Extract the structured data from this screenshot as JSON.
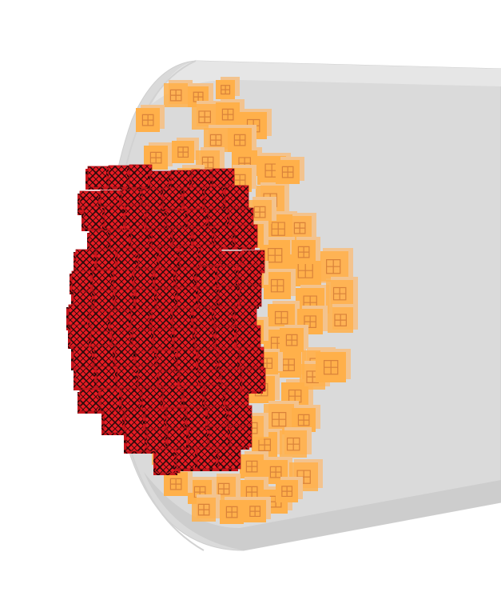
{
  "scene": {
    "background_color": "#ffffff",
    "cylinder": {
      "fill": "#d9d9d9",
      "cap_fill": "#e4e4e4",
      "edge": "#cfcfcf"
    },
    "outer_blocks": {
      "fill": "#ffb04a",
      "side_fill": "#f3c38e",
      "grid_line": "#d9823a",
      "count": 62
    },
    "inner_blocks": {
      "fill": "#e81c24",
      "dark_fill": "#b3141a",
      "pattern_line": "#2a0a0a",
      "count": 120
    }
  }
}
